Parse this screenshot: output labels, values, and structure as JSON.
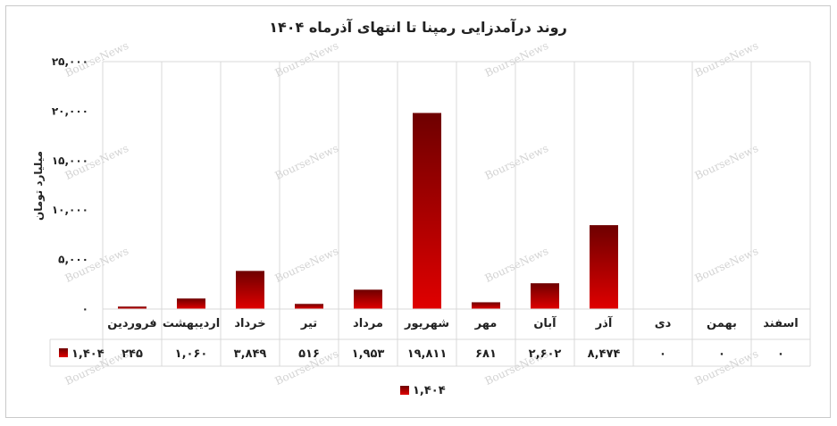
{
  "watermark": "BourseNews",
  "colors": {
    "bar_top": "#6e0000",
    "bar_bottom": "#e00000",
    "grid": "#d9d9d9",
    "text": "#222222"
  },
  "chart_data": {
    "type": "bar",
    "title": "روند درآمدزایی رمپنا تا انتهای آذرماه ۱۴۰۴",
    "ylabel": "میلیارد تومان",
    "xlabel": "",
    "ylim": [
      0,
      25000
    ],
    "yticks": [
      0,
      5000,
      10000,
      15000,
      20000,
      25000
    ],
    "ytick_labels": [
      "۰",
      "۵,۰۰۰",
      "۱۰,۰۰۰",
      "۱۵,۰۰۰",
      "۲۰,۰۰۰",
      "۲۵,۰۰۰"
    ],
    "categories": [
      "فروردین",
      "اردیبهشت",
      "خرداد",
      "تیر",
      "مرداد",
      "شهریور",
      "مهر",
      "آبان",
      "آذر",
      "دی",
      "بهمن",
      "اسفند"
    ],
    "series": [
      {
        "name": "۱,۴۰۴",
        "values": [
          245,
          1060,
          3849,
          516,
          1953,
          19811,
          681,
          2602,
          8474,
          0,
          0,
          0
        ],
        "labels": [
          "۲۴۵",
          "۱,۰۶۰",
          "۳,۸۴۹",
          "۵۱۶",
          "۱,۹۵۳",
          "۱۹,۸۱۱",
          "۶۸۱",
          "۲,۶۰۲",
          "۸,۴۷۴",
          "۰",
          "۰",
          "۰"
        ]
      }
    ],
    "grid": true,
    "data_table": true,
    "legend_position": "bottom"
  }
}
